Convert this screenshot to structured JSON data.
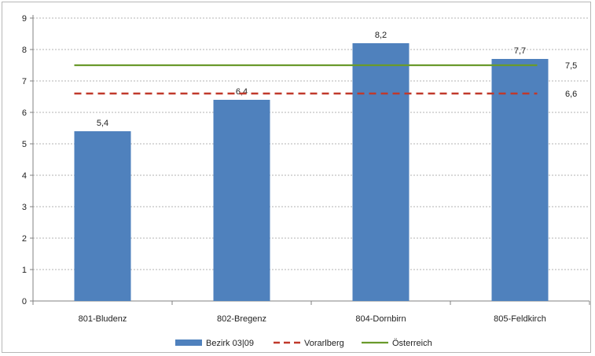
{
  "chart_data": {
    "type": "bar",
    "categories": [
      "801-Bludenz",
      "802-Bregenz",
      "804-Dornbirn",
      "805-Feldkirch"
    ],
    "series": [
      {
        "name": "Bezirk 03|09",
        "type": "bar",
        "values": [
          5.4,
          6.4,
          8.2,
          7.7
        ],
        "color": "#4f81bd"
      }
    ],
    "reference_lines": [
      {
        "name": "Vorarlberg",
        "value": 6.6,
        "label": "6,6",
        "style": "dashed",
        "color": "#c0392b"
      },
      {
        "name": "Österreich",
        "value": 7.5,
        "label": "7,5",
        "style": "solid",
        "color": "#6a9a2b"
      }
    ],
    "data_labels": [
      "5,4",
      "6,4",
      "8,2",
      "7,7"
    ],
    "y_ticks": [
      "0",
      "1",
      "2",
      "3",
      "4",
      "5",
      "6",
      "7",
      "8",
      "9"
    ],
    "ylim": [
      0,
      9
    ],
    "grid": "horizontal dashed",
    "legend_position": "bottom",
    "title": "",
    "xlabel": "",
    "ylabel": ""
  }
}
